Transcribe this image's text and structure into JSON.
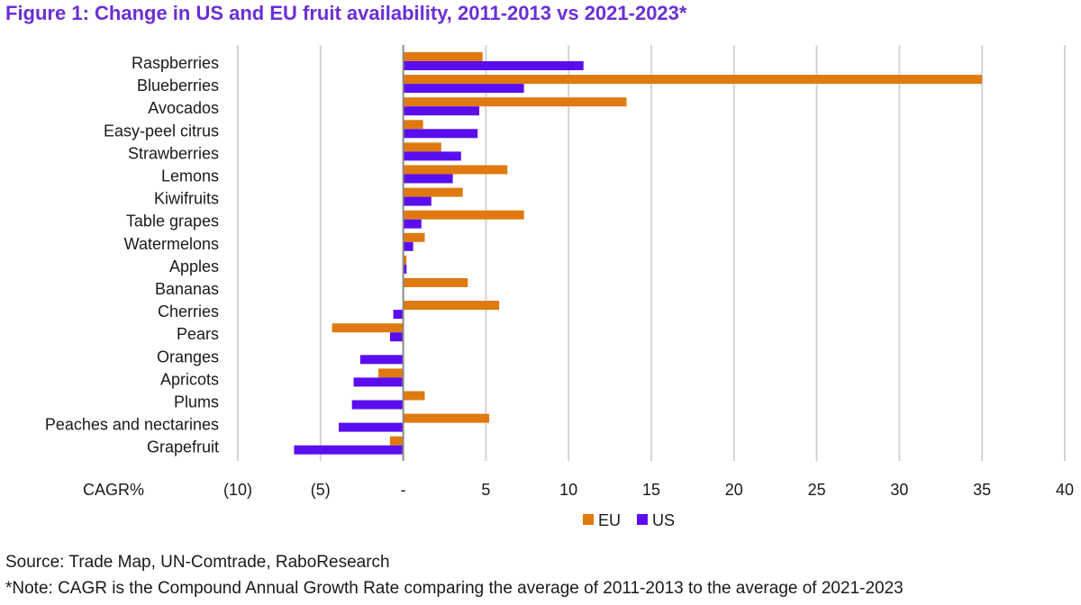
{
  "page": {
    "title": "Figure 1: Change in US and EU fruit availability, 2011-2013 vs 2021-2023*",
    "source": "Source: Trade Map, UN-Comtrade, RaboResearch",
    "note": "*Note: CAGR is the Compound Annual Growth Rate comparing the average of 2011-2013 to the average of 2021-2023"
  },
  "colors": {
    "EU": "#e0790f",
    "US": "#5a0ef0",
    "grid": "#d4d4d4",
    "axis": "#8a8a8a"
  },
  "chart_data": {
    "type": "bar",
    "orientation": "horizontal",
    "title": "Figure 1: Change in US and EU fruit availability, 2011-2013 vs 2021-2023*",
    "xlabel": "CAGR%",
    "xlim": [
      -10,
      40
    ],
    "xticks": [
      -10,
      -5,
      0,
      5,
      10,
      15,
      20,
      25,
      30,
      35,
      40
    ],
    "xtick_labels": [
      "(10)",
      "(5)",
      "-",
      "5",
      "10",
      "15",
      "20",
      "25",
      "30",
      "35",
      "40"
    ],
    "grid": true,
    "legend": "bottom-center",
    "categories": [
      "Raspberries",
      "Blueberries",
      "Avocados",
      "Easy-peel citrus",
      "Strawberries",
      "Lemons",
      "Kiwifruits",
      "Table grapes",
      "Watermelons",
      "Apples",
      "Bananas",
      "Cherries",
      "Pears",
      "Oranges",
      "Apricots",
      "Plums",
      "Peaches and nectarines",
      "Grapefruit"
    ],
    "series": [
      {
        "name": "EU",
        "values": [
          4.8,
          35.0,
          13.5,
          1.2,
          2.3,
          6.3,
          3.6,
          7.3,
          1.3,
          0.2,
          3.9,
          5.8,
          -4.3,
          0.0,
          -1.5,
          1.3,
          5.2,
          -0.8
        ]
      },
      {
        "name": "US",
        "values": [
          10.9,
          7.3,
          4.6,
          4.5,
          3.5,
          3.0,
          1.7,
          1.1,
          0.6,
          0.2,
          0.0,
          -0.6,
          -0.8,
          -2.6,
          -3.0,
          -3.1,
          -3.9,
          -6.6
        ]
      }
    ]
  }
}
